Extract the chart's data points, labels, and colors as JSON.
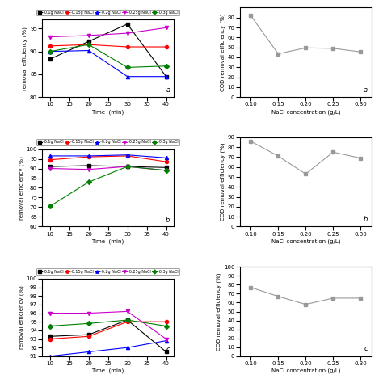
{
  "panel_a_left": {
    "time": [
      10,
      20,
      30,
      40
    ],
    "series": {
      "0.1g NaCl": {
        "color": "#000000",
        "marker": "s",
        "values": [
          88.3,
          92.2,
          96.0,
          84.5
        ]
      },
      "0.15g NaCl": {
        "color": "#ff0000",
        "marker": "o",
        "values": [
          91.2,
          91.5,
          91.0,
          91.0
        ]
      },
      "0.2g NaCl": {
        "color": "#0000ff",
        "marker": "^",
        "values": [
          90.0,
          90.2,
          84.5,
          84.5
        ]
      },
      "0.25g NaCl": {
        "color": "#cc00cc",
        "marker": "v",
        "values": [
          93.2,
          93.5,
          94.0,
          95.2
        ]
      },
      "0.3g NaCl": {
        "color": "#008000",
        "marker": "D",
        "values": [
          90.0,
          91.5,
          86.5,
          86.8
        ]
      }
    },
    "ylabel": "removal efficiency (%)",
    "xlabel": "Time  (min)",
    "ylim": [
      80,
      97
    ],
    "xlim": [
      8,
      42
    ],
    "xticks": [
      10,
      15,
      20,
      25,
      30,
      35,
      40
    ],
    "yticks": [
      80,
      85,
      90,
      95
    ],
    "label": "a"
  },
  "panel_a_right": {
    "nacl": [
      0.1,
      0.15,
      0.2,
      0.25,
      0.3
    ],
    "cod": [
      82.0,
      43.5,
      49.5,
      49.0,
      45.5
    ],
    "color": "#999999",
    "marker": "s",
    "ylabel": "COD removal efficiency (%)",
    "xlabel": "NaCl concentration (g/L)",
    "ylim": [
      0,
      90
    ],
    "xlim": [
      0.08,
      0.32
    ],
    "xticks": [
      0.1,
      0.15,
      0.2,
      0.25,
      0.3
    ],
    "yticks": [
      0,
      10,
      20,
      30,
      40,
      50,
      60,
      70,
      80
    ],
    "label": "a"
  },
  "panel_b_left": {
    "time": [
      10,
      20,
      30,
      40
    ],
    "series": {
      "0.1g NaCl": {
        "color": "#000000",
        "marker": "s",
        "values": [
          91.0,
          91.5,
          91.0,
          90.5
        ]
      },
      "0.15g NaCl": {
        "color": "#ff0000",
        "marker": "o",
        "values": [
          94.5,
          96.0,
          96.5,
          93.5
        ]
      },
      "0.2g NaCl": {
        "color": "#0000ff",
        "marker": "^",
        "values": [
          96.5,
          96.5,
          97.0,
          95.5
        ]
      },
      "0.25g NaCl": {
        "color": "#cc00cc",
        "marker": "v",
        "values": [
          90.0,
          89.5,
          91.0,
          89.0
        ]
      },
      "0.3g NaCl": {
        "color": "#008000",
        "marker": "D",
        "values": [
          70.5,
          83.0,
          91.0,
          89.0
        ]
      }
    },
    "ylabel": "removal efficiency (%)",
    "xlabel": "Time  (min)",
    "ylim": [
      60,
      100
    ],
    "xlim": [
      8,
      42
    ],
    "xticks": [
      10,
      15,
      20,
      25,
      30,
      35,
      40
    ],
    "yticks": [
      60,
      65,
      70,
      75,
      80,
      85,
      90,
      95,
      100
    ],
    "label": "b"
  },
  "panel_b_right": {
    "nacl": [
      0.1,
      0.15,
      0.2,
      0.25,
      0.3
    ],
    "cod": [
      86.0,
      71.0,
      53.0,
      75.0,
      69.0
    ],
    "color": "#999999",
    "marker": "s",
    "ylabel": "COD removal efficiency (%)",
    "xlabel": "NaCl concentration (g/L)",
    "ylim": [
      0,
      90
    ],
    "xlim": [
      0.08,
      0.32
    ],
    "xticks": [
      0.1,
      0.15,
      0.2,
      0.25,
      0.3
    ],
    "yticks": [
      0,
      10,
      20,
      30,
      40,
      50,
      60,
      70,
      80,
      90
    ],
    "label": "b"
  },
  "panel_c_left": {
    "time": [
      10,
      20,
      30,
      40
    ],
    "series": {
      "0.1g NaCl": {
        "color": "#000000",
        "marker": "s",
        "values": [
          93.3,
          93.5,
          95.2,
          91.5
        ]
      },
      "0.15g NaCl": {
        "color": "#ff0000",
        "marker": "o",
        "values": [
          93.0,
          93.3,
          95.0,
          95.0
        ]
      },
      "0.2g NaCl": {
        "color": "#0000ff",
        "marker": "^",
        "values": [
          91.0,
          91.5,
          92.0,
          92.8
        ]
      },
      "0.25g NaCl": {
        "color": "#cc00cc",
        "marker": "v",
        "values": [
          96.0,
          96.0,
          96.2,
          93.0
        ]
      },
      "0.3g NaCl": {
        "color": "#008000",
        "marker": "D",
        "values": [
          94.5,
          94.8,
          95.2,
          94.5
        ]
      }
    },
    "ylabel": "removal efficiency (%)",
    "xlabel": "Time  (min)",
    "ylim": [
      91,
      100
    ],
    "xlim": [
      8,
      42
    ],
    "xticks": [
      10,
      15,
      20,
      25,
      30,
      35,
      40
    ],
    "yticks": [
      91,
      92,
      93,
      94,
      95,
      96,
      97,
      98,
      99,
      100
    ],
    "label": "c"
  },
  "panel_c_right": {
    "nacl": [
      0.1,
      0.15,
      0.2,
      0.25,
      0.3
    ],
    "cod": [
      77.0,
      67.0,
      58.0,
      65.0,
      65.0
    ],
    "color": "#999999",
    "marker": "s",
    "ylabel": "COD removal efficiency (%)",
    "xlabel": "NaCl concentration (g/L)",
    "ylim": [
      0,
      100
    ],
    "xlim": [
      0.08,
      0.32
    ],
    "xticks": [
      0.1,
      0.15,
      0.2,
      0.25,
      0.3
    ],
    "yticks": [
      0,
      10,
      20,
      30,
      40,
      50,
      60,
      70,
      80,
      90,
      100
    ],
    "label": "c"
  },
  "legend_labels": [
    "-0.1g NaCl",
    "-0.15g NaCl",
    "-0.2g NaCl",
    "-0.25g NaCl",
    "-0.3g NaCl"
  ],
  "legend_colors": [
    "#000000",
    "#ff0000",
    "#0000ff",
    "#cc00cc",
    "#008000"
  ],
  "legend_markers": [
    "s",
    "o",
    "^",
    "v",
    "D"
  ]
}
